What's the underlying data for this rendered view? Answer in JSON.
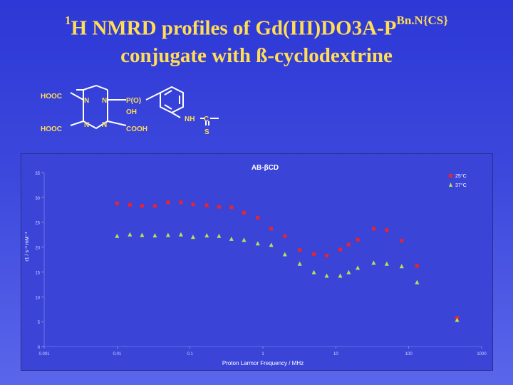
{
  "slide": {
    "title_pre": "1",
    "title_main": "H NMRD profiles of Gd(III)DO3A-P",
    "title_sup": "Bn.N{CS}",
    "title_line2": "conjugate with ß-cyclodextrine"
  },
  "structure": {
    "labels": {
      "hooc_top": "HOOC",
      "hooc_bottom": "HOOC",
      "n1": "N",
      "n2": "N",
      "n3": "N",
      "n4": "N",
      "po": "P(O)",
      "oh": "OH",
      "cooh": "COOH",
      "nh": "NH",
      "c": "C",
      "s": "S"
    },
    "colors": {
      "lines": "#ffffff",
      "hetero": "#ffdd55"
    }
  },
  "chart_data": {
    "type": "scatter",
    "title": "AB-βCD",
    "xlabel": "Proton Larmor Frequency / MHz",
    "ylabel": "r1 / s⁻¹ mM⁻¹",
    "xscale": "log",
    "xlim": [
      0.001,
      1000
    ],
    "ylim": [
      0,
      35
    ],
    "x_ticks": [
      "0.001",
      "0.01",
      "0.1",
      "1",
      "10",
      "100",
      "1000"
    ],
    "y_ticks": [
      "0",
      "5",
      "10",
      "15",
      "20",
      "25",
      "30",
      "35"
    ],
    "legend_position": "top-right",
    "series": [
      {
        "name": "25°C",
        "color": "#e8242c",
        "marker": "square",
        "points": [
          [
            0.01,
            28.8
          ],
          [
            0.015,
            28.5
          ],
          [
            0.022,
            28.3
          ],
          [
            0.033,
            28.3
          ],
          [
            0.05,
            29.0
          ],
          [
            0.075,
            29.0
          ],
          [
            0.11,
            28.6
          ],
          [
            0.17,
            28.4
          ],
          [
            0.25,
            28.1
          ],
          [
            0.37,
            28.0
          ],
          [
            0.55,
            26.9
          ],
          [
            0.85,
            25.9
          ],
          [
            1.3,
            23.7
          ],
          [
            2.0,
            22.2
          ],
          [
            3.2,
            19.4
          ],
          [
            5.0,
            18.6
          ],
          [
            7.5,
            18.3
          ],
          [
            11.5,
            19.5
          ],
          [
            15,
            20.5
          ],
          [
            20,
            21.5
          ],
          [
            33,
            23.7
          ],
          [
            50,
            23.4
          ],
          [
            80,
            21.3
          ],
          [
            130,
            16.2
          ],
          [
            460,
            5.8
          ]
        ]
      },
      {
        "name": "37°C",
        "color": "#b8e05a",
        "marker": "triangle",
        "points": [
          [
            0.01,
            22.2
          ],
          [
            0.015,
            22.5
          ],
          [
            0.022,
            22.4
          ],
          [
            0.033,
            22.3
          ],
          [
            0.05,
            22.4
          ],
          [
            0.075,
            22.5
          ],
          [
            0.11,
            22.0
          ],
          [
            0.17,
            22.3
          ],
          [
            0.25,
            22.2
          ],
          [
            0.37,
            21.6
          ],
          [
            0.55,
            21.4
          ],
          [
            0.85,
            20.7
          ],
          [
            1.3,
            20.4
          ],
          [
            2.0,
            18.5
          ],
          [
            3.2,
            16.6
          ],
          [
            5.0,
            14.9
          ],
          [
            7.5,
            14.2
          ],
          [
            11.5,
            14.2
          ],
          [
            15,
            14.9
          ],
          [
            20,
            15.8
          ],
          [
            33,
            16.8
          ],
          [
            50,
            16.6
          ],
          [
            80,
            16.1
          ],
          [
            130,
            12.9
          ],
          [
            460,
            5.3
          ]
        ]
      }
    ]
  }
}
